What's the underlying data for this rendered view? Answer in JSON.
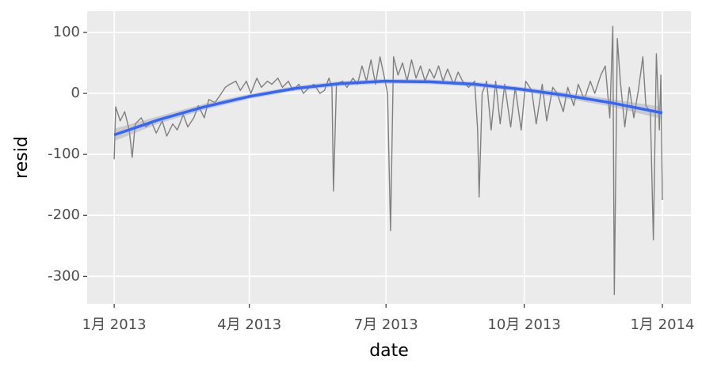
{
  "chart_data": {
    "type": "line",
    "x_label": "date",
    "y_label": "resid",
    "xlim": [
      -18,
      384
    ],
    "ylim": [
      -345,
      135
    ],
    "xticks": [
      {
        "value": 0,
        "label": "1月 2013"
      },
      {
        "value": 90,
        "label": "4月 2013"
      },
      {
        "value": 181,
        "label": "7月 2013"
      },
      {
        "value": 273,
        "label": "10月 2013"
      },
      {
        "value": 365,
        "label": "1月 2014"
      }
    ],
    "yticks": [
      -300,
      -200,
      -100,
      0,
      100
    ],
    "grid": true,
    "series": [
      {
        "color": "#7f7f7f",
        "x": [
          0,
          1,
          4,
          7,
          10,
          12,
          14,
          18,
          21,
          25,
          28,
          32,
          35,
          39,
          42,
          46,
          49,
          53,
          56,
          60,
          63,
          67,
          70,
          74,
          77,
          81,
          84,
          88,
          91,
          95,
          98,
          102,
          105,
          109,
          112,
          116,
          119,
          123,
          126,
          130,
          133,
          137,
          140,
          143,
          145,
          146,
          148,
          152,
          155,
          159,
          162,
          165,
          168,
          171,
          174,
          177,
          180,
          182,
          184,
          186,
          189,
          192,
          195,
          198,
          201,
          204,
          207,
          210,
          213,
          216,
          219,
          222,
          226,
          229,
          232,
          236,
          240,
          242,
          243,
          245,
          248,
          251,
          254,
          257,
          260,
          264,
          267,
          271,
          274,
          278,
          281,
          285,
          288,
          292,
          295,
          299,
          302,
          306,
          309,
          313,
          317,
          320,
          324,
          327,
          330,
          332,
          333,
          335,
          337,
          340,
          343,
          346,
          349,
          352,
          354,
          357,
          359,
          361,
          363,
          364,
          365
        ],
        "values": [
          -108,
          -22,
          -45,
          -30,
          -60,
          -105,
          -50,
          -40,
          -55,
          -48,
          -65,
          -45,
          -70,
          -50,
          -60,
          -35,
          -55,
          -40,
          -20,
          -40,
          -10,
          -15,
          -5,
          10,
          15,
          20,
          5,
          20,
          0,
          25,
          10,
          20,
          15,
          25,
          10,
          20,
          5,
          15,
          0,
          10,
          15,
          0,
          5,
          25,
          10,
          -160,
          15,
          20,
          10,
          25,
          15,
          45,
          20,
          55,
          15,
          60,
          25,
          0,
          -225,
          60,
          30,
          50,
          20,
          55,
          25,
          45,
          20,
          40,
          25,
          45,
          20,
          40,
          15,
          35,
          20,
          10,
          20,
          -60,
          -170,
          0,
          20,
          -60,
          20,
          -50,
          15,
          -55,
          10,
          -60,
          20,
          5,
          -50,
          15,
          -45,
          10,
          0,
          -30,
          10,
          -20,
          15,
          -10,
          20,
          0,
          30,
          45,
          -40,
          110,
          -330,
          90,
          20,
          -55,
          10,
          -40,
          5,
          60,
          -20,
          -30,
          -240,
          65,
          -60,
          30,
          -175
        ]
      },
      {
        "color": "#3366ff",
        "x": [
          0,
          30,
          60,
          90,
          120,
          150,
          180,
          210,
          240,
          270,
          300,
          330,
          365
        ],
        "values": [
          -68,
          -43,
          -22,
          -5,
          8,
          16,
          20,
          19,
          15,
          7,
          -3,
          -15,
          -32
        ],
        "ci_lower": [
          -78,
          -49,
          -27,
          -9,
          4,
          12,
          16,
          15,
          11,
          3,
          -8,
          -21,
          -42
        ],
        "ci_upper": [
          -58,
          -37,
          -17,
          -1,
          12,
          20,
          24,
          23,
          19,
          11,
          2,
          -9,
          -22
        ]
      }
    ]
  }
}
